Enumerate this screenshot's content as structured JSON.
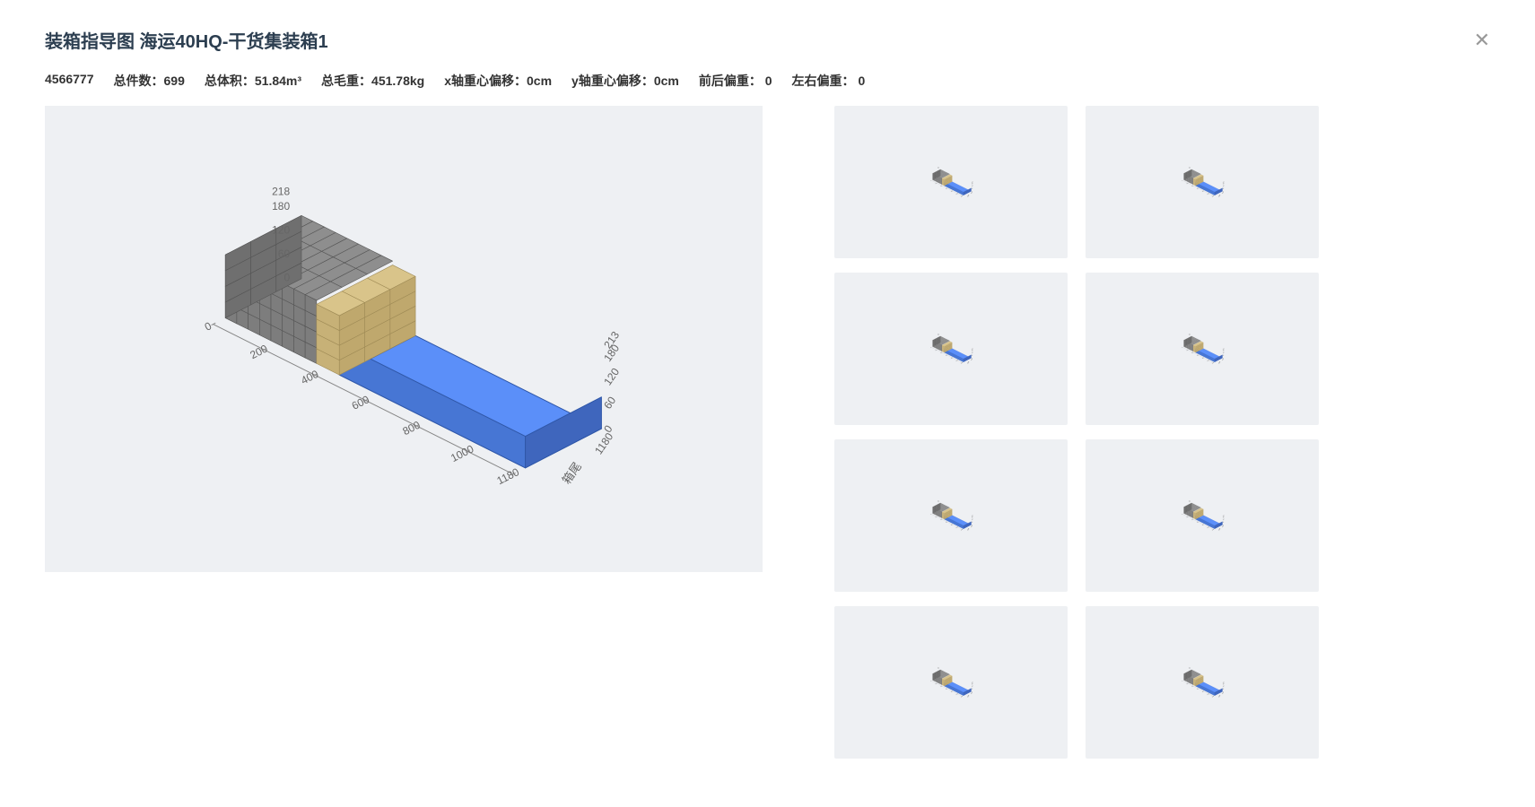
{
  "page_title": "装箱指导图 海运40HQ-干货集装箱1",
  "stats": {
    "id": "4566777",
    "total_count_label": "总件数：",
    "total_count": "699",
    "total_volume_label": "总体积：",
    "total_volume": "51.84m³",
    "total_weight_label": "总毛重：",
    "total_weight": "451.78kg",
    "x_offset_label": "x轴重心偏移：",
    "x_offset": "0cm",
    "y_offset_label": "y轴重心偏移：",
    "y_offset": "0cm",
    "fb_bias_label": "前后偏重：",
    "fb_bias": "0",
    "lr_bias_label": "左右偏重：",
    "lr_bias": "0"
  },
  "viz": {
    "type": "3d-isometric-container",
    "container_color_top": "#5b8ff9",
    "container_color_side": "#4776d4",
    "container_color_front": "#3f66bd",
    "cargo_grey_fill": "#8e8e8e",
    "cargo_grey_stroke": "#555555",
    "cargo_tan_fill": "#d9c48a",
    "cargo_tan_stroke": "#9e8a55",
    "axis_label_color": "#666666",
    "axis_label_fontsize": 12,
    "tail_label": "箱尾",
    "length_ticks": [
      0,
      200,
      400,
      600,
      800,
      1000,
      1180
    ],
    "width_ticks": [
      218,
      180,
      120,
      60,
      0
    ],
    "height_ticks_left": [
      218,
      180,
      120,
      60,
      0
    ],
    "height_ticks_right": [
      0,
      60,
      120,
      180,
      213,
      1180
    ],
    "length_max": 1180,
    "width_max": 218,
    "height_max": 218,
    "grey_rows": 4,
    "grey_cols": 8,
    "tan_rows": 4,
    "tan_cols": 1
  },
  "thumbnails": [
    {
      "id": "t1"
    },
    {
      "id": "t2"
    },
    {
      "id": "t3"
    },
    {
      "id": "t4"
    },
    {
      "id": "t5"
    },
    {
      "id": "t6"
    },
    {
      "id": "t7"
    },
    {
      "id": "t8"
    }
  ]
}
